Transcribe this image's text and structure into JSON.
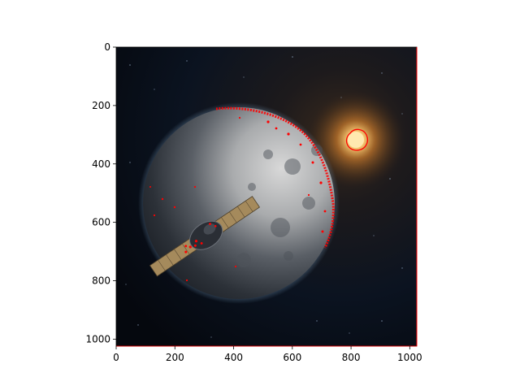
{
  "figure": {
    "background": "#ffffff",
    "accent_overlay_color": "#ff0000"
  },
  "image": {
    "subject": "moon-with-satellite-and-sun",
    "x_range": [
      0,
      1024
    ],
    "y_range": [
      1024,
      0
    ],
    "x_ticks": [
      "0",
      "200",
      "400",
      "600",
      "800",
      "1000"
    ],
    "y_ticks": [
      "0",
      "200",
      "400",
      "600",
      "800",
      "1000"
    ]
  }
}
